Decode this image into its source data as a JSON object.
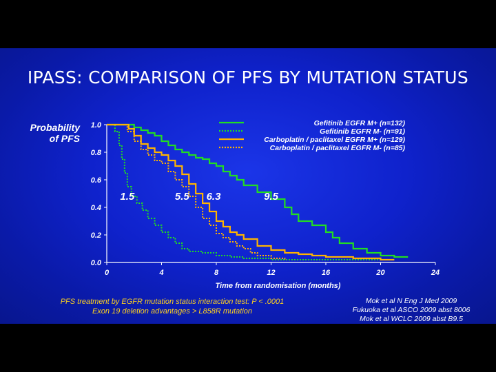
{
  "slide": {
    "title": "IPASS: COMPARISON OF PFS BY MUTATION STATUS",
    "background": "#0f22cc",
    "footnote_lines": [
      "PFS treatment by EGFR mutation status interaction test: P < .0001",
      "Exon 19 deletion advantages > L858R mutation"
    ],
    "references": [
      "Mok et al N Eng J Med 2009",
      "Fukuoka et al ASCO 2009 abst 8006",
      "Mok et al WCLC 2009 abst B9.5"
    ]
  },
  "chart_data": {
    "type": "line",
    "step": true,
    "ylabel_lines": [
      "Probability",
      "of PFS"
    ],
    "xlabel": "Time from randomisation (months)",
    "xlim": [
      0,
      24
    ],
    "ylim": [
      0,
      1
    ],
    "x_ticks": [
      "0",
      "4",
      "8",
      "12",
      "16",
      "20",
      "24"
    ],
    "y_ticks": [
      "0.0",
      "0.2",
      "0.4",
      "0.6",
      "0.8",
      "1.0"
    ],
    "grid": false,
    "legend_position": "top-right",
    "median_labels": [
      {
        "text": "1.5",
        "x": 1.5,
        "y": 0.48
      },
      {
        "text": "5.5",
        "x": 5.5,
        "y": 0.48
      },
      {
        "text": "6.3",
        "x": 7.8,
        "y": 0.48
      },
      {
        "text": "9.5",
        "x": 12.0,
        "y": 0.48
      }
    ],
    "series": [
      {
        "name": "Gefitinib EGFR M+ (n=132)",
        "color": "#22dd22",
        "dash": "solid",
        "points": [
          [
            0,
            1.0
          ],
          [
            1.5,
            1.0
          ],
          [
            2.0,
            0.98
          ],
          [
            2.5,
            0.96
          ],
          [
            3.0,
            0.94
          ],
          [
            3.5,
            0.92
          ],
          [
            4.0,
            0.88
          ],
          [
            4.5,
            0.85
          ],
          [
            5.0,
            0.82
          ],
          [
            5.5,
            0.8
          ],
          [
            6.0,
            0.78
          ],
          [
            6.5,
            0.76
          ],
          [
            7.0,
            0.75
          ],
          [
            7.5,
            0.72
          ],
          [
            8.0,
            0.7
          ],
          [
            8.5,
            0.66
          ],
          [
            9.0,
            0.63
          ],
          [
            9.5,
            0.6
          ],
          [
            10.0,
            0.56
          ],
          [
            11.0,
            0.51
          ],
          [
            12.0,
            0.46
          ],
          [
            13.0,
            0.4
          ],
          [
            13.5,
            0.35
          ],
          [
            14.0,
            0.3
          ],
          [
            15.0,
            0.27
          ],
          [
            16.0,
            0.22
          ],
          [
            16.5,
            0.18
          ],
          [
            17.0,
            0.14
          ],
          [
            18.0,
            0.1
          ],
          [
            19.0,
            0.07
          ],
          [
            20.0,
            0.05
          ],
          [
            21.0,
            0.04
          ],
          [
            22.0,
            0.04
          ]
        ]
      },
      {
        "name": "Gefitinib EGFR M- (n=91)",
        "color": "#22dd22",
        "dash": "dotted",
        "points": [
          [
            0,
            1.0
          ],
          [
            0.6,
            0.95
          ],
          [
            0.9,
            0.85
          ],
          [
            1.1,
            0.75
          ],
          [
            1.3,
            0.65
          ],
          [
            1.5,
            0.55
          ],
          [
            1.8,
            0.48
          ],
          [
            2.2,
            0.43
          ],
          [
            2.6,
            0.38
          ],
          [
            3.0,
            0.32
          ],
          [
            3.5,
            0.27
          ],
          [
            4.0,
            0.22
          ],
          [
            4.5,
            0.18
          ],
          [
            5.0,
            0.14
          ],
          [
            5.5,
            0.1
          ],
          [
            6.0,
            0.08
          ],
          [
            7.0,
            0.07
          ],
          [
            8.0,
            0.05
          ],
          [
            9.0,
            0.04
          ],
          [
            10.0,
            0.03
          ],
          [
            12.0,
            0.02
          ],
          [
            14.0,
            0.02
          ],
          [
            16.0,
            0.02
          ],
          [
            18.0,
            0.02
          ],
          [
            20.0,
            0.02
          ]
        ]
      },
      {
        "name": "Carboplatin / paclitaxel EGFR M+ (n=129)",
        "color": "#ffb400",
        "dash": "solid",
        "points": [
          [
            0,
            1.0
          ],
          [
            1.2,
            1.0
          ],
          [
            1.6,
            0.97
          ],
          [
            2.0,
            0.92
          ],
          [
            2.5,
            0.86
          ],
          [
            3.0,
            0.83
          ],
          [
            3.5,
            0.8
          ],
          [
            4.0,
            0.78
          ],
          [
            4.5,
            0.74
          ],
          [
            5.0,
            0.7
          ],
          [
            5.5,
            0.64
          ],
          [
            6.0,
            0.57
          ],
          [
            6.5,
            0.5
          ],
          [
            7.0,
            0.43
          ],
          [
            7.5,
            0.37
          ],
          [
            8.0,
            0.3
          ],
          [
            8.5,
            0.26
          ],
          [
            9.0,
            0.22
          ],
          [
            9.5,
            0.2
          ],
          [
            10.0,
            0.17
          ],
          [
            11.0,
            0.12
          ],
          [
            12.0,
            0.09
          ],
          [
            13.0,
            0.07
          ],
          [
            14.0,
            0.06
          ],
          [
            15.0,
            0.05
          ],
          [
            16.0,
            0.04
          ],
          [
            18.0,
            0.03
          ],
          [
            20.0,
            0.02
          ],
          [
            21.0,
            0.02
          ]
        ]
      },
      {
        "name": "Carboplatin / paclitaxel EGFR M- (n=85)",
        "color": "#ffb400",
        "dash": "dotted",
        "points": [
          [
            0,
            1.0
          ],
          [
            1.0,
            1.0
          ],
          [
            1.5,
            0.95
          ],
          [
            2.0,
            0.88
          ],
          [
            2.5,
            0.82
          ],
          [
            3.0,
            0.78
          ],
          [
            3.5,
            0.74
          ],
          [
            4.0,
            0.72
          ],
          [
            4.5,
            0.66
          ],
          [
            5.0,
            0.6
          ],
          [
            5.5,
            0.55
          ],
          [
            6.0,
            0.48
          ],
          [
            6.5,
            0.4
          ],
          [
            7.0,
            0.32
          ],
          [
            7.5,
            0.27
          ],
          [
            8.0,
            0.21
          ],
          [
            8.5,
            0.18
          ],
          [
            9.0,
            0.15
          ],
          [
            9.5,
            0.12
          ],
          [
            10.0,
            0.1
          ],
          [
            10.5,
            0.07
          ],
          [
            11.0,
            0.05
          ],
          [
            12.0,
            0.03
          ],
          [
            13.0,
            0.02
          ]
        ]
      }
    ]
  }
}
